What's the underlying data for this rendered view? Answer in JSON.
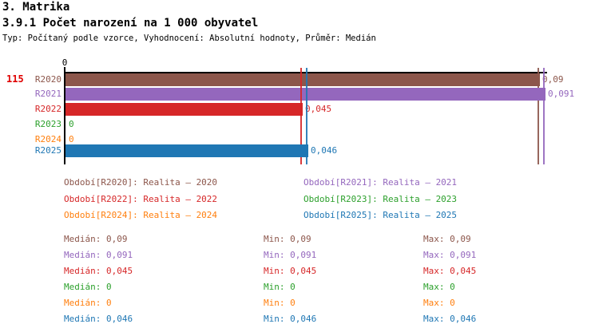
{
  "header": {
    "section_title": "3. Matrika",
    "chart_title": "3.9.1 Počet narození na 1 000 obyvatel",
    "subtitle": "Typ: Počítaný podle vzorce, Vyhodnocení: Absolutní hodnoty, Průměr: Medián"
  },
  "chart": {
    "row_count": "115",
    "axis_zero_label": "0",
    "series": [
      {
        "id": "R2020",
        "label": "R2020",
        "value": 0.09,
        "value_label": "0,09",
        "color": "#8c564b",
        "has_bar": true
      },
      {
        "id": "R2021",
        "label": "R2021",
        "value": 0.091,
        "value_label": "0,091",
        "color": "#9467bd",
        "has_bar": true
      },
      {
        "id": "R2022",
        "label": "R2022",
        "value": 0.045,
        "value_label": "0,045",
        "color": "#d62728",
        "has_bar": true
      },
      {
        "id": "R2023",
        "label": "R2023",
        "value": 0,
        "value_label": "0",
        "color": "#2ca02c",
        "has_bar": false
      },
      {
        "id": "R2024",
        "label": "R2024",
        "value": 0,
        "value_label": "0",
        "color": "#ff7f0e",
        "has_bar": false
      },
      {
        "id": "R2025",
        "label": "R2025",
        "value": 0.046,
        "value_label": "0,046",
        "color": "#1f77b4",
        "has_bar": true
      }
    ]
  },
  "legend": {
    "items": [
      {
        "id": "R2020",
        "label": "Období[R2020]: Realita – 2020",
        "color": "#8c564b"
      },
      {
        "id": "R2021",
        "label": "Období[R2021]: Realita – 2021",
        "color": "#9467bd"
      },
      {
        "id": "R2022",
        "label": "Období[R2022]: Realita – 2022",
        "color": "#d62728"
      },
      {
        "id": "R2023",
        "label": "Období[R2023]: Realita – 2023",
        "color": "#2ca02c"
      },
      {
        "id": "R2024",
        "label": "Období[R2024]: Realita – 2024",
        "color": "#ff7f0e"
      },
      {
        "id": "R2025",
        "label": "Období[R2025]: Realita – 2025",
        "color": "#1f77b4"
      }
    ]
  },
  "stats": {
    "rows": [
      {
        "id": "R2020",
        "median_text": "Medián: 0,09",
        "min_text": "Min: 0,09",
        "max_text": "Max: 0,09",
        "color": "#8c564b"
      },
      {
        "id": "R2021",
        "median_text": "Medián: 0,091",
        "min_text": "Min: 0,091",
        "max_text": "Max: 0,091",
        "color": "#9467bd"
      },
      {
        "id": "R2022",
        "median_text": "Medián: 0,045",
        "min_text": "Min: 0,045",
        "max_text": "Max: 0,045",
        "color": "#d62728"
      },
      {
        "id": "R2023",
        "median_text": "Medián: 0",
        "min_text": "Min: 0",
        "max_text": "Max: 0",
        "color": "#2ca02c"
      },
      {
        "id": "R2024",
        "median_text": "Medián: 0",
        "min_text": "Min: 0",
        "max_text": "Max: 0",
        "color": "#ff7f0e"
      },
      {
        "id": "R2025",
        "median_text": "Medián: 0,046",
        "min_text": "Min: 0,046",
        "max_text": "Max: 0,046",
        "color": "#1f77b4"
      }
    ]
  },
  "colors": {
    "axis": "#000000",
    "row_count": "#e00000",
    "background": "#ffffff"
  },
  "chart_data": {
    "type": "bar",
    "orientation": "horizontal",
    "title": "3.9.1 Počet narození na 1 000 obyvatel",
    "subtitle": "Typ: Počítaný podle vzorce, Vyhodnocení: Absolutní hodnoty, Průměr: Medián",
    "categories": [
      "R2020",
      "R2021",
      "R2022",
      "R2023",
      "R2024",
      "R2025"
    ],
    "values": [
      0.09,
      0.091,
      0.045,
      0,
      0,
      0.046
    ],
    "value_labels": [
      "0,09",
      "0,091",
      "0,045",
      "0",
      "0",
      "0,046"
    ],
    "series_colors": [
      "#8c564b",
      "#9467bd",
      "#d62728",
      "#2ca02c",
      "#ff7f0e",
      "#1f77b4"
    ],
    "xlabel": "",
    "ylabel": "",
    "xlim": [
      0,
      0.092
    ],
    "x_tick_labels": [
      "0"
    ],
    "grid": false,
    "median_marker_values": [
      0.09,
      0.091,
      0.045,
      0.046
    ],
    "median_marker_colors": [
      "#8c564b",
      "#9467bd",
      "#d62728",
      "#1f77b4"
    ],
    "legend_entries": [
      "Období[R2020]: Realita – 2020",
      "Období[R2021]: Realita – 2021",
      "Období[R2022]: Realita – 2022",
      "Období[R2023]: Realita – 2023",
      "Období[R2024]: Realita – 2024",
      "Období[R2025]: Realita – 2025"
    ],
    "stats_table": {
      "median": [
        0.09,
        0.091,
        0.045,
        0,
        0,
        0.046
      ],
      "min": [
        0.09,
        0.091,
        0.045,
        0,
        0,
        0.046
      ],
      "max": [
        0.09,
        0.091,
        0.045,
        0,
        0,
        0.046
      ]
    },
    "row_count_label": "115"
  }
}
